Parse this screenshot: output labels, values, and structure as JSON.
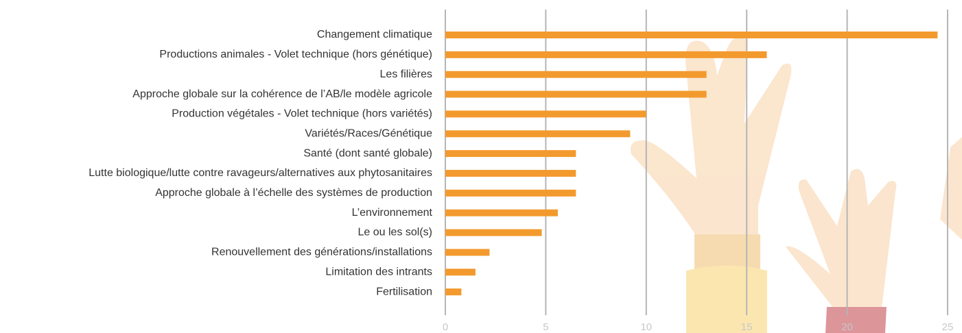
{
  "chart_data": {
    "type": "bar",
    "orientation": "horizontal",
    "categories": [
      "Changement climatique",
      "Productions animales - Volet technique (hors génétique)",
      "Les filières",
      "Approche globale sur la cohérence de l’AB/le modèle agricole",
      "Production végétales - Volet technique (hors variétés)",
      "Variétés/Races/Génétique",
      "Santé (dont santé globale)",
      "Lutte biologique/lutte contre ravageurs/alternatives aux phytosanitaires",
      "Approche globale à l’échelle des systèmes de production",
      "L’environnement",
      "Le ou les sol(s)",
      "Renouvellement des générations/installations",
      "Limitation des intrants",
      "Fertilisation"
    ],
    "values": [
      24.5,
      16,
      13,
      13,
      10,
      9.2,
      6.5,
      6.5,
      6.5,
      5.6,
      4.8,
      2.2,
      1.5,
      0.8
    ],
    "color": "#f39a2e",
    "xlim": [
      0,
      25
    ],
    "xticks": [
      0,
      5,
      10,
      15,
      20,
      25
    ],
    "grid": true
  }
}
